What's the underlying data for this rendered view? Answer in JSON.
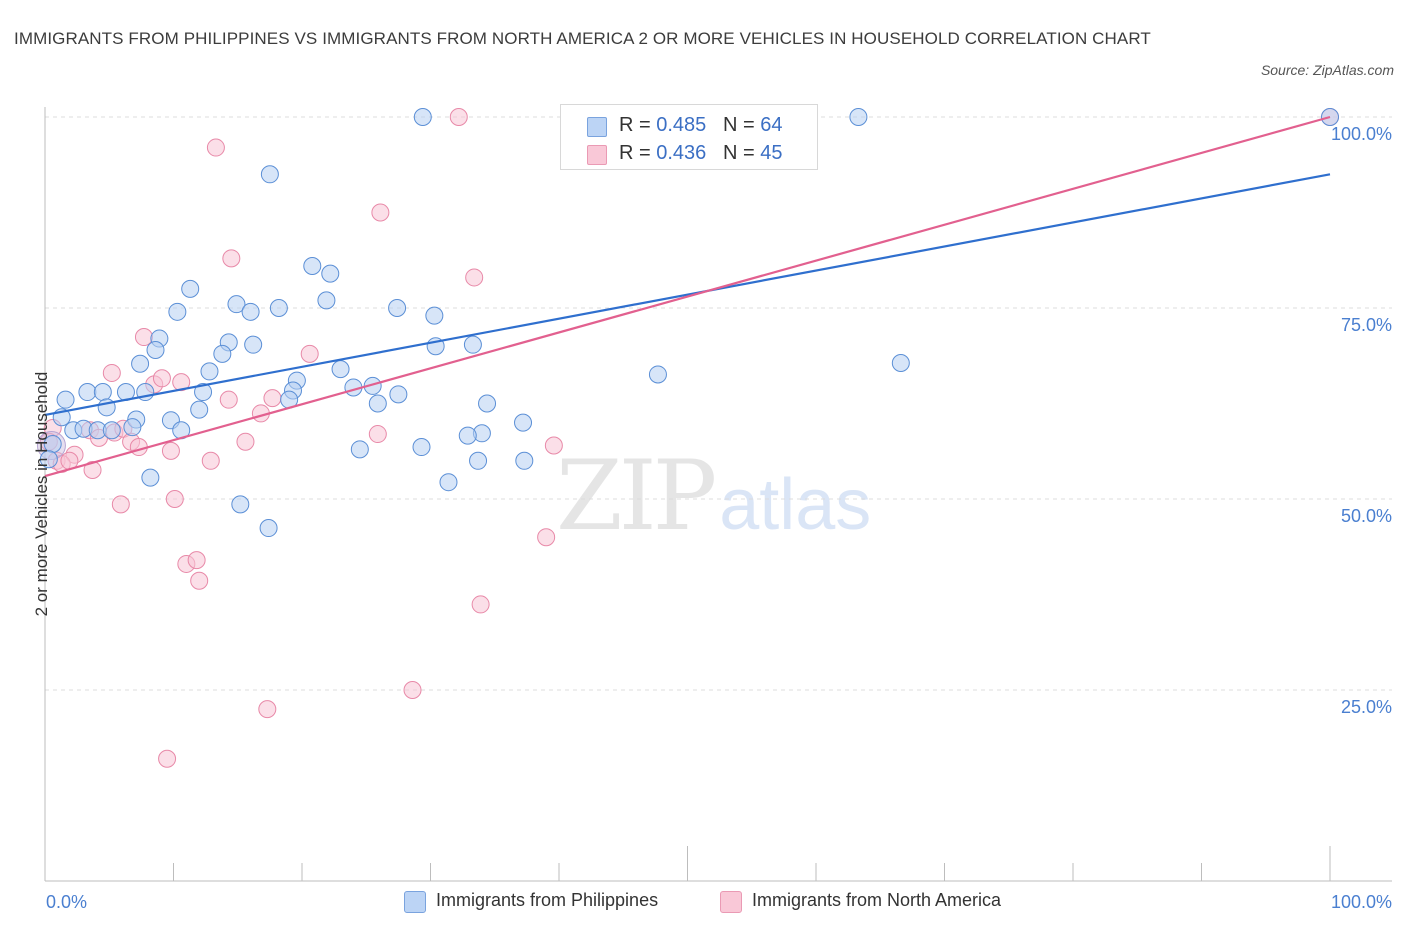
{
  "header": {
    "title": "IMMIGRANTS FROM PHILIPPINES VS IMMIGRANTS FROM NORTH AMERICA 2 OR MORE VEHICLES IN HOUSEHOLD CORRELATION CHART",
    "source": "Source: ZipAtlas.com"
  },
  "watermark": {
    "zip": "ZIP",
    "atlas": "atlas"
  },
  "legend": {
    "rows": [
      {
        "r_label": "R =",
        "r_value": "0.485",
        "n_label": "N =",
        "n_value": "64",
        "color": "#a9c6ef"
      },
      {
        "r_label": "R =",
        "r_value": "0.436",
        "n_label": "N =",
        "n_value": "45",
        "color": "#f4b6c9"
      }
    ]
  },
  "bottom_legend": {
    "series1": "Immigrants from Philippines",
    "series2": "Immigrants from North America"
  },
  "chart_data": {
    "type": "scatter",
    "ylabel": "2 or more Vehicles in Household",
    "xlabel": "",
    "xlim": [
      0,
      100
    ],
    "ylim": [
      0,
      100
    ],
    "x_tick_labels": [
      "0.0%",
      "100.0%"
    ],
    "y_ticks": [
      {
        "value": 25,
        "label": "25.0%"
      },
      {
        "value": 50,
        "label": "50.0%"
      },
      {
        "value": 75,
        "label": "75.0%"
      },
      {
        "value": 100,
        "label": "100.0%"
      }
    ],
    "grid": true,
    "legend_position": "top-center",
    "series": [
      {
        "name": "Immigrants from Philippines",
        "color": "#5b8fd6",
        "fill": "#b7d0f2",
        "line_color": "#2f6fce",
        "trend": {
          "x": [
            0,
            100
          ],
          "y": [
            61,
            92.5
          ]
        },
        "points": [
          [
            29.4,
            100
          ],
          [
            63.3,
            100
          ],
          [
            100,
            100
          ],
          [
            17.5,
            92.5
          ],
          [
            20.8,
            80.5
          ],
          [
            22.2,
            79.5
          ],
          [
            11.3,
            77.5
          ],
          [
            21.9,
            76
          ],
          [
            14.9,
            75.5
          ],
          [
            16.0,
            74.5
          ],
          [
            18.2,
            75
          ],
          [
            10.3,
            74.5
          ],
          [
            27.4,
            75
          ],
          [
            30.3,
            74
          ],
          [
            8.9,
            71
          ],
          [
            14.3,
            70.5
          ],
          [
            16.2,
            70.2
          ],
          [
            30.4,
            70
          ],
          [
            33.3,
            70.2
          ],
          [
            8.6,
            69.5
          ],
          [
            13.8,
            69
          ],
          [
            7.4,
            67.7
          ],
          [
            12.8,
            66.7
          ],
          [
            23.0,
            67
          ],
          [
            47.7,
            66.3
          ],
          [
            66.6,
            67.8
          ],
          [
            19.6,
            65.5
          ],
          [
            24.0,
            64.6
          ],
          [
            12.3,
            64
          ],
          [
            3.3,
            64
          ],
          [
            4.5,
            64
          ],
          [
            6.3,
            64
          ],
          [
            7.8,
            64
          ],
          [
            19.3,
            64.2
          ],
          [
            25.5,
            64.8
          ],
          [
            27.5,
            63.7
          ],
          [
            1.6,
            63
          ],
          [
            19.0,
            63
          ],
          [
            25.9,
            62.5
          ],
          [
            4.8,
            62
          ],
          [
            12.0,
            61.7
          ],
          [
            1.3,
            60.7
          ],
          [
            9.8,
            60.3
          ],
          [
            7.1,
            60.4
          ],
          [
            6.8,
            59.4
          ],
          [
            2.2,
            59
          ],
          [
            3.0,
            59.2
          ],
          [
            4.1,
            59
          ],
          [
            5.2,
            59
          ],
          [
            10.6,
            59
          ],
          [
            34.0,
            58.6
          ],
          [
            32.9,
            58.3
          ],
          [
            29.3,
            56.8
          ],
          [
            34.4,
            62.5
          ],
          [
            24.5,
            56.5
          ],
          [
            0.6,
            57.2
          ],
          [
            0.3,
            55.2
          ],
          [
            33.7,
            55
          ],
          [
            37.3,
            55
          ],
          [
            37.2,
            60
          ],
          [
            31.4,
            52.2
          ],
          [
            8.2,
            52.8
          ],
          [
            15.2,
            49.3
          ],
          [
            17.4,
            46.2
          ]
        ]
      },
      {
        "name": "Immigrants from North America",
        "color": "#e889a8",
        "fill": "#f7c5d5",
        "line_color": "#e2608f",
        "trend": {
          "x": [
            0,
            100
          ],
          "y": [
            53,
            100
          ]
        },
        "points": [
          [
            32.2,
            100
          ],
          [
            47.3,
            100
          ],
          [
            100,
            100
          ],
          [
            13.3,
            96
          ],
          [
            26.1,
            87.5
          ],
          [
            14.5,
            81.5
          ],
          [
            33.4,
            79
          ],
          [
            20.6,
            69
          ],
          [
            7.7,
            71.2
          ],
          [
            5.2,
            66.5
          ],
          [
            8.5,
            65
          ],
          [
            9.1,
            65.8
          ],
          [
            10.6,
            65.3
          ],
          [
            14.3,
            63
          ],
          [
            17.7,
            63.2
          ],
          [
            16.8,
            61.2
          ],
          [
            25.9,
            58.5
          ],
          [
            0.6,
            59.3
          ],
          [
            0.3,
            57.5
          ],
          [
            3.5,
            59
          ],
          [
            4.2,
            58
          ],
          [
            5.4,
            58.7
          ],
          [
            6.1,
            59.2
          ],
          [
            6.7,
            57.5
          ],
          [
            7.3,
            56.8
          ],
          [
            9.8,
            56.3
          ],
          [
            15.6,
            57.5
          ],
          [
            2.3,
            55.8
          ],
          [
            0.9,
            55
          ],
          [
            1.3,
            54.6
          ],
          [
            1.9,
            55
          ],
          [
            3.7,
            53.8
          ],
          [
            12.9,
            55
          ],
          [
            39.6,
            57
          ],
          [
            5.9,
            49.3
          ],
          [
            10.1,
            50
          ],
          [
            39.0,
            45
          ],
          [
            11.0,
            41.5
          ],
          [
            11.8,
            42
          ],
          [
            12.0,
            39.3
          ],
          [
            33.9,
            36.2
          ],
          [
            28.6,
            25
          ],
          [
            17.3,
            22.5
          ],
          [
            9.5,
            16
          ]
        ]
      }
    ]
  }
}
